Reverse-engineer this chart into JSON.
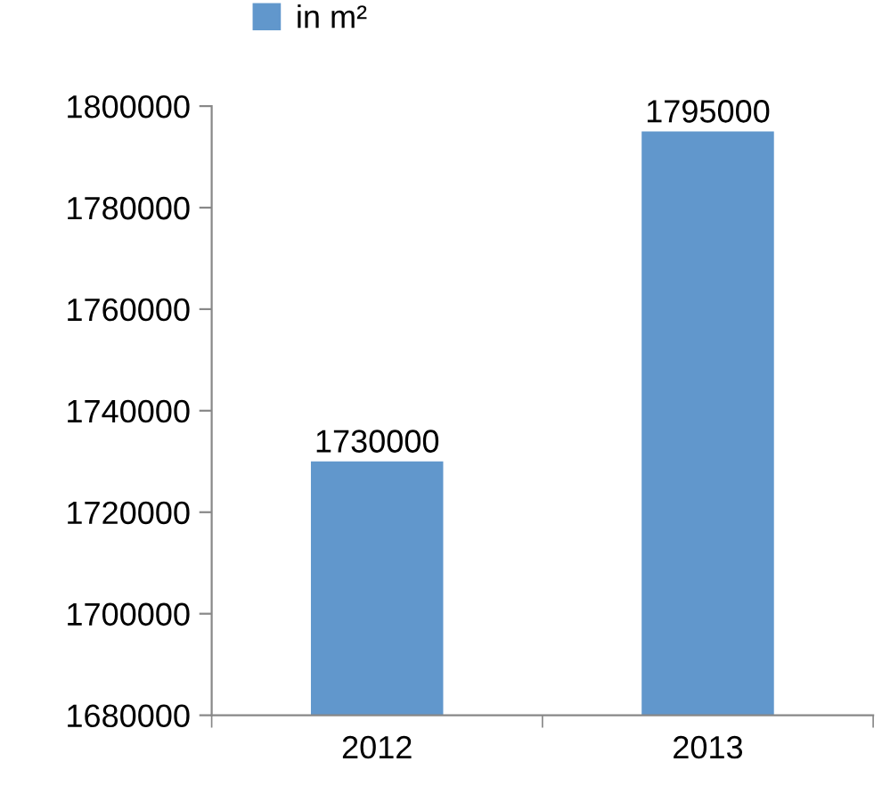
{
  "chart_data": {
    "type": "bar",
    "categories": [
      "2012",
      "2013"
    ],
    "series": [
      {
        "name": "in m²",
        "color": "#6197cc",
        "values": [
          1730000,
          1795000
        ]
      }
    ],
    "ylim": [
      1680000,
      1800000
    ],
    "yticks": [
      1680000,
      1700000,
      1720000,
      1740000,
      1760000,
      1780000,
      1800000
    ],
    "data_labels": true,
    "grid": false,
    "legend": "top left"
  }
}
